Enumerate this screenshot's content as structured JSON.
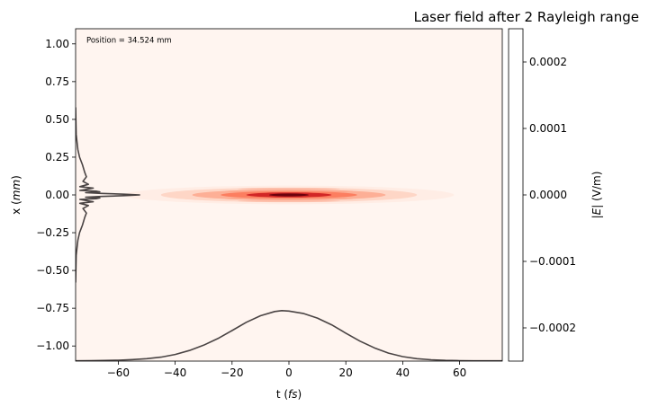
{
  "chart_data": {
    "type": "heatmap",
    "title": "Laser field after 2 Rayleigh range",
    "annotation": "Position = 34.524 mm",
    "xlabel_text": "t (",
    "xlabel_unit": "fs",
    "xlabel_close": ")",
    "ylabel_text": "x (",
    "ylabel_unit": "mm",
    "ylabel_close": ")",
    "colorbar_label_pre": "|",
    "colorbar_label_var": "E",
    "colorbar_label_post": "| (V/m)",
    "xlim": [
      -75,
      75
    ],
    "ylim": [
      -1.1,
      1.1
    ],
    "colorbar_lim": [
      -0.00025,
      0.00025
    ],
    "x_ticks": [
      {
        "v": -60,
        "label": "−60"
      },
      {
        "v": -40,
        "label": "−40"
      },
      {
        "v": -20,
        "label": "−20"
      },
      {
        "v": 0,
        "label": "0"
      },
      {
        "v": 20,
        "label": "20"
      },
      {
        "v": 40,
        "label": "40"
      },
      {
        "v": 60,
        "label": "60"
      }
    ],
    "y_ticks": [
      {
        "v": 1.0,
        "label": "1.00"
      },
      {
        "v": 0.75,
        "label": "0.75"
      },
      {
        "v": 0.5,
        "label": "0.50"
      },
      {
        "v": 0.25,
        "label": "0.25"
      },
      {
        "v": 0.0,
        "label": "0.00"
      },
      {
        "v": -0.25,
        "label": "−0.25"
      },
      {
        "v": -0.5,
        "label": "−0.50"
      },
      {
        "v": -0.75,
        "label": "−0.75"
      },
      {
        "v": -1.0,
        "label": "−1.00"
      }
    ],
    "colorbar_ticks": [
      {
        "v": 0.0002,
        "label": "0.0002"
      },
      {
        "v": 0.0001,
        "label": "0.0001"
      },
      {
        "v": 0.0,
        "label": "0.0000"
      },
      {
        "v": -0.0001,
        "label": "−0.0001"
      },
      {
        "v": -0.0002,
        "label": "−0.0002"
      }
    ],
    "temporal_profile": {
      "t": [
        -75,
        -70,
        -65,
        -60,
        -55,
        -50,
        -45,
        -40,
        -35,
        -30,
        -25,
        -20,
        -15,
        -10,
        -5,
        -2.5,
        0,
        5,
        10,
        15,
        20,
        25,
        30,
        35,
        40,
        45,
        50,
        55,
        60,
        65,
        70,
        75
      ],
      "x": [
        -1.098,
        -1.097,
        -1.096,
        -1.094,
        -1.09,
        -1.084,
        -1.074,
        -1.056,
        -1.03,
        -0.995,
        -0.951,
        -0.898,
        -0.843,
        -0.8,
        -0.772,
        -0.766,
        -0.769,
        -0.784,
        -0.815,
        -0.86,
        -0.915,
        -0.968,
        -1.012,
        -1.047,
        -1.07,
        -1.084,
        -1.091,
        -1.095,
        -1.097,
        -1.098,
        -1.098,
        -1.098
      ]
    },
    "transverse_profile": {
      "x": [
        0.58,
        0.4,
        0.3,
        0.25,
        0.2,
        0.15,
        0.12,
        0.09,
        0.07,
        0.055,
        0.045,
        0.035,
        0.03,
        0.025,
        0.02,
        0.015,
        0.01,
        0.005,
        0.0,
        -0.005,
        -0.01,
        -0.015,
        -0.02,
        -0.025,
        -0.03,
        -0.035,
        -0.045,
        -0.055,
        -0.07,
        -0.09,
        -0.12,
        -0.15,
        -0.2,
        -0.25,
        -0.3,
        -0.4,
        -0.58
      ],
      "t": [
        -75,
        -74.8,
        -74.2,
        -73.6,
        -72.6,
        -71.8,
        -71.2,
        -72.4,
        -70.5,
        -73.5,
        -68.8,
        -71.8,
        -73.5,
        -67.8,
        -66.5,
        -71.5,
        -66,
        -58,
        -52.5,
        -58,
        -66,
        -71.5,
        -66.5,
        -67.8,
        -73.5,
        -71.8,
        -68.8,
        -73.5,
        -70.5,
        -72.4,
        -71.2,
        -71.8,
        -72.6,
        -73.6,
        -74.2,
        -74.8,
        -75
      ]
    },
    "field_intensity": {
      "center_t": 0,
      "center_x": 0,
      "colormap": "Reds",
      "levels": [
        {
          "half_width_t": 58,
          "half_height_x": 0.028,
          "amplitude": 0.06
        },
        {
          "half_width_t": 45,
          "half_height_x": 0.022,
          "amplitude": 0.18
        },
        {
          "half_width_t": 34,
          "half_height_x": 0.016,
          "amplitude": 0.36
        },
        {
          "half_width_t": 24,
          "half_height_x": 0.011,
          "amplitude": 0.6
        },
        {
          "half_width_t": 15,
          "half_height_x": 0.0075,
          "amplitude": 0.85
        },
        {
          "half_width_t": 7,
          "half_height_x": 0.0045,
          "amplitude": 1.0
        }
      ]
    },
    "colors": {
      "background": "#fff5f0",
      "profile_line": "#4a4444",
      "colormap_low": "#fff5f0",
      "colormap_mid": "#ef3b2c",
      "colormap_high": "#67000d"
    },
    "grid": false
  }
}
